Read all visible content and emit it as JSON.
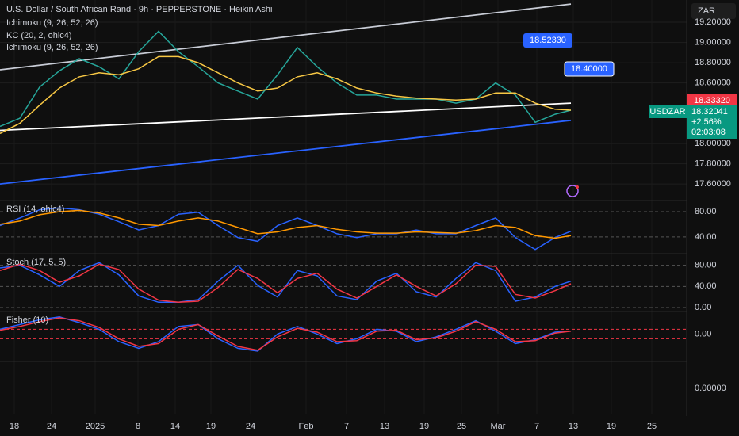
{
  "chart_data": [
    {
      "type": "line",
      "title": "U.S. Dollar / South African Rand · 9h · PEPPERSTONE · Heikin Ashi",
      "indicators": [
        "Ichimoku (9, 26, 52, 26)",
        "KC (20, 2, ohlc4)",
        "Ichimoku (9, 26, 52, 26)"
      ],
      "currency": "ZAR",
      "annotations": [
        "18.52330",
        "18.40000",
        "18.33320",
        "USDZAR",
        "18.32041",
        "+2.56%",
        "02:03:08"
      ],
      "xlim": [
        0,
        173.2
      ],
      "xticks": [
        {
          "value": 3.6,
          "label": "18"
        },
        {
          "value": 13,
          "label": "24"
        },
        {
          "value": 24,
          "label": "2025"
        },
        {
          "value": 34.8,
          "label": "8"
        },
        {
          "value": 44.2,
          "label": "14"
        },
        {
          "value": 53.2,
          "label": "19"
        },
        {
          "value": 63.2,
          "label": "24"
        },
        {
          "value": 77.2,
          "label": "Feb"
        },
        {
          "value": 87.4,
          "label": "7"
        },
        {
          "value": 97,
          "label": "13"
        },
        {
          "value": 107,
          "label": "19"
        },
        {
          "value": 116.4,
          "label": "25"
        },
        {
          "value": 125.6,
          "label": "Mar"
        },
        {
          "value": 135.4,
          "label": "7"
        },
        {
          "value": 144.6,
          "label": "13"
        },
        {
          "value": 154.2,
          "label": "19"
        },
        {
          "value": 164.4,
          "label": "25"
        }
      ],
      "ylim": [
        17.46,
        19.42
      ],
      "yticks": [
        {
          "value": 17.6,
          "label": "17.60000"
        },
        {
          "value": 17.8,
          "label": "17.80000"
        },
        {
          "value": 18.0,
          "label": "18.00000"
        },
        {
          "value": 18.6,
          "label": "18.60000"
        },
        {
          "value": 18.8,
          "label": "18.80000"
        },
        {
          "value": 19.0,
          "label": "19.00000"
        },
        {
          "value": 19.2,
          "label": "19.20000"
        }
      ],
      "grid": true,
      "x": [
        0,
        5,
        10,
        15,
        20,
        25,
        30,
        35,
        40,
        45,
        50,
        55,
        60,
        65,
        70,
        75,
        80,
        85,
        90,
        95,
        100,
        105,
        110,
        115,
        120,
        125,
        130,
        135,
        140,
        144
      ],
      "series": [
        {
          "color": "#26a69a",
          "values": [
            18.17,
            18.25,
            18.56,
            18.72,
            18.84,
            18.76,
            18.64,
            18.91,
            19.11,
            18.91,
            18.76,
            18.6,
            18.52,
            18.44,
            18.68,
            18.95,
            18.76,
            18.6,
            18.48,
            18.48,
            18.44,
            18.44,
            18.44,
            18.4,
            18.44,
            18.6,
            18.48,
            18.21,
            18.29,
            18.33
          ]
        },
        {
          "color": "#f7c744",
          "values": [
            18.1,
            18.2,
            18.38,
            18.55,
            18.66,
            18.7,
            18.68,
            18.74,
            18.86,
            18.86,
            18.8,
            18.7,
            18.6,
            18.52,
            18.55,
            18.66,
            18.7,
            18.64,
            18.55,
            18.5,
            18.47,
            18.45,
            18.44,
            18.43,
            18.44,
            18.5,
            18.5,
            18.4,
            18.34,
            18.33
          ]
        }
      ],
      "trendlines": [
        {
          "color": "#c8ccd6",
          "x": [
            0,
            144
          ],
          "values": [
            18.73,
            19.38
          ]
        },
        {
          "color": "#ffffff",
          "x": [
            0,
            144
          ],
          "values": [
            18.13,
            18.4
          ]
        },
        {
          "color": "#2962ff",
          "x": [
            0,
            144
          ],
          "values": [
            17.6,
            18.23
          ]
        }
      ]
    },
    {
      "type": "line",
      "title": "RSI (14, ohlc4)",
      "xlim": [
        0,
        173.2
      ],
      "ylim": [
        16,
        95
      ],
      "yticks": [
        {
          "value": 40,
          "label": "40.00"
        },
        {
          "value": 80,
          "label": "80.00"
        }
      ],
      "grid": true,
      "x": [
        0,
        5,
        10,
        15,
        20,
        25,
        30,
        35,
        40,
        45,
        50,
        55,
        60,
        65,
        70,
        75,
        80,
        85,
        90,
        95,
        100,
        105,
        110,
        115,
        120,
        125,
        130,
        135,
        140,
        144
      ],
      "series": [
        {
          "color": "#2962ff",
          "values": [
            58,
            70,
            83,
            86,
            83,
            76,
            64,
            51,
            58,
            76,
            79,
            58,
            39,
            33,
            58,
            70,
            58,
            45,
            39,
            45,
            45,
            51,
            45,
            45,
            58,
            70,
            39,
            20,
            39,
            49
          ]
        },
        {
          "color": "#ff9800",
          "values": [
            60,
            65,
            75,
            80,
            82,
            78,
            70,
            60,
            58,
            65,
            70,
            65,
            55,
            45,
            48,
            55,
            58,
            52,
            48,
            46,
            46,
            48,
            47,
            46,
            50,
            58,
            55,
            42,
            38,
            42
          ]
        }
      ]
    },
    {
      "type": "line",
      "title": "Stoch (17, 5, 5)",
      "xlim": [
        0,
        173.2
      ],
      "ylim": [
        -6,
        99
      ],
      "yticks": [
        {
          "value": 0,
          "label": "0.00"
        },
        {
          "value": 40,
          "label": "40.00"
        },
        {
          "value": 80,
          "label": "80.00"
        }
      ],
      "grid": true,
      "x": [
        0,
        5,
        10,
        15,
        20,
        25,
        30,
        35,
        40,
        45,
        50,
        55,
        60,
        65,
        70,
        75,
        80,
        85,
        90,
        95,
        100,
        105,
        110,
        115,
        120,
        125,
        130,
        135,
        140,
        144
      ],
      "series": [
        {
          "color": "#2962ff",
          "values": [
            75,
            80,
            62,
            40,
            70,
            85,
            62,
            22,
            10,
            10,
            15,
            50,
            80,
            42,
            20,
            70,
            60,
            22,
            15,
            50,
            65,
            30,
            20,
            55,
            85,
            70,
            12,
            20,
            40,
            50
          ]
        },
        {
          "color": "#f23645",
          "values": [
            70,
            82,
            70,
            48,
            60,
            82,
            72,
            35,
            14,
            10,
            12,
            38,
            72,
            55,
            28,
            55,
            65,
            35,
            18,
            40,
            62,
            40,
            22,
            45,
            80,
            78,
            25,
            18,
            32,
            45
          ]
        }
      ]
    },
    {
      "type": "line",
      "title": "Fisher (10)",
      "xlim": [
        0,
        173.2
      ],
      "ylim": [
        -2.8,
        2.2
      ],
      "yticks": [
        {
          "value": 0,
          "label": "0.00"
        }
      ],
      "grid": false,
      "levels": [
        0.5,
        -0.5
      ],
      "level_color": "#f23645",
      "x": [
        0,
        5,
        10,
        15,
        20,
        25,
        30,
        35,
        40,
        45,
        50,
        55,
        60,
        65,
        70,
        75,
        80,
        85,
        90,
        95,
        100,
        105,
        110,
        115,
        120,
        125,
        130,
        135,
        140,
        144
      ],
      "series": [
        {
          "color": "#2962ff",
          "values": [
            0.5,
            1,
            1.5,
            1.8,
            1.2,
            0.5,
            -0.8,
            -1.5,
            -0.8,
            0.8,
            1.0,
            -0.5,
            -1.5,
            -1.8,
            0,
            0.8,
            0,
            -1,
            -0.5,
            0.5,
            0.3,
            -0.8,
            -0.3,
            0.5,
            1.4,
            0.3,
            -1,
            -0.6,
            0.2,
            0.3
          ]
        },
        {
          "color": "#f23645",
          "values": [
            0.4,
            0.8,
            1.3,
            1.7,
            1.4,
            0.7,
            -0.5,
            -1.3,
            -1.0,
            0.5,
            1.0,
            -0.2,
            -1.3,
            -1.7,
            -0.3,
            0.6,
            0.2,
            -0.8,
            -0.7,
            0.3,
            0.4,
            -0.6,
            -0.4,
            0.3,
            1.3,
            0.5,
            -0.8,
            -0.7,
            0.1,
            0.3
          ]
        }
      ]
    },
    {
      "type": "line",
      "xlim": [
        0,
        173.2
      ],
      "ylim": [
        -1,
        1
      ],
      "yticks": [
        {
          "value": 0,
          "label": "0.00000"
        }
      ],
      "grid": false,
      "x": [],
      "series": []
    }
  ]
}
